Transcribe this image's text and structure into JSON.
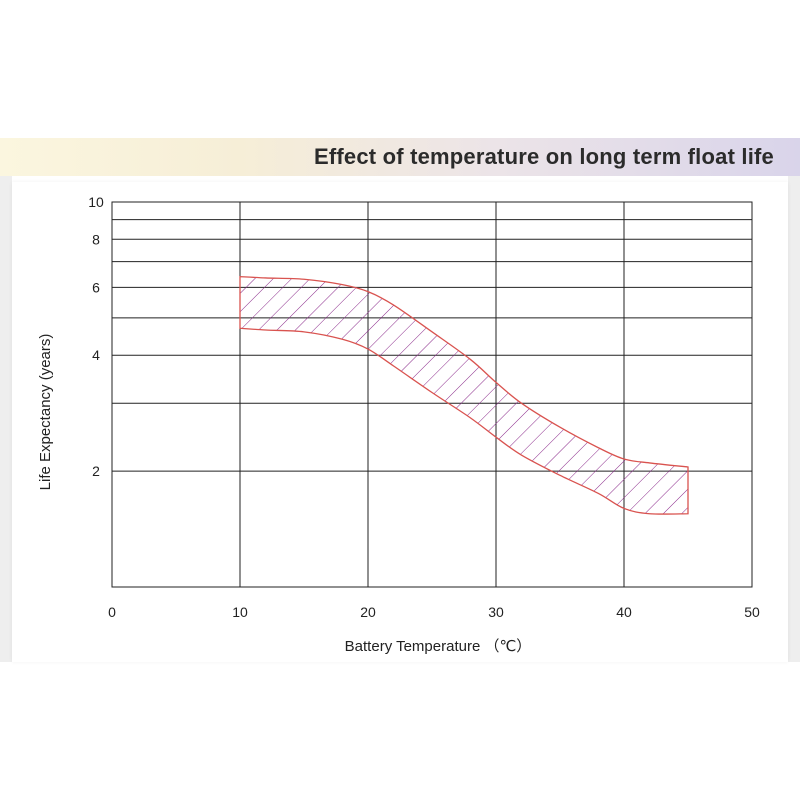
{
  "banner": {
    "title": "Effect of temperature on long term float life"
  },
  "chart_data": {
    "type": "area",
    "title": "Effect of temperature on long term float life",
    "xlabel": "Battery Temperature （℃）",
    "ylabel": "Life Expectancy (years)",
    "xlim": [
      0,
      50
    ],
    "ylim": [
      1,
      10
    ],
    "yscale": "log",
    "x_ticks": [
      0,
      10,
      20,
      30,
      40,
      50
    ],
    "y_ticks": [
      2,
      4,
      6,
      8,
      10
    ],
    "grid": true,
    "series": [
      {
        "role": "upper-bound",
        "x": [
          10,
          12,
          15,
          18,
          20,
          22,
          25,
          28,
          30,
          32,
          35,
          38,
          40,
          42,
          45
        ],
        "y": [
          6.4,
          6.35,
          6.3,
          6.1,
          5.85,
          5.4,
          4.6,
          3.9,
          3.4,
          3.0,
          2.6,
          2.3,
          2.15,
          2.1,
          2.05
        ]
      },
      {
        "role": "lower-bound",
        "x": [
          10,
          12,
          15,
          18,
          20,
          22,
          25,
          28,
          30,
          32,
          35,
          38,
          40,
          42,
          45
        ],
        "y": [
          4.7,
          4.65,
          4.6,
          4.4,
          4.15,
          3.75,
          3.2,
          2.75,
          2.45,
          2.2,
          1.95,
          1.75,
          1.6,
          1.55,
          1.55
        ]
      }
    ],
    "colors": {
      "band_stroke": "#d9534f",
      "hatch": "#8b2a8b",
      "grid": "#222222"
    }
  }
}
